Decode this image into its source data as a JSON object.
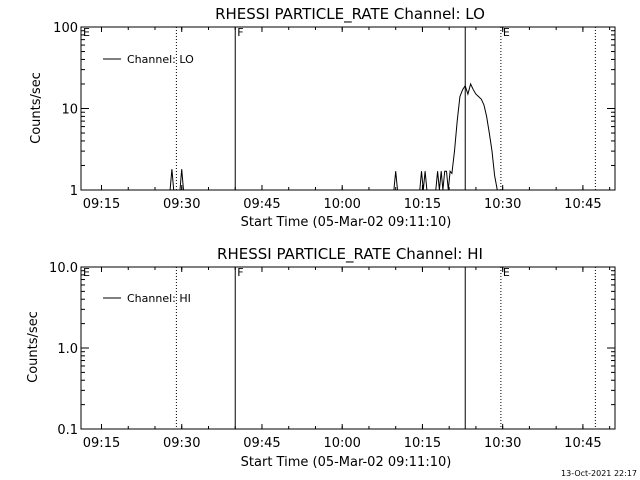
{
  "chart_data": [
    {
      "type": "line",
      "title": "RHESSI PARTICLE_RATE Channel: LO",
      "xlabel": "Start Time (05-Mar-02 09:11:10)",
      "ylabel": "Counts/sec",
      "y_scale": "log",
      "xlim": [
        "09:11:10",
        "10:51:00"
      ],
      "ylim": [
        1,
        100
      ],
      "x_ticks": [
        "09:15",
        "09:30",
        "09:45",
        "10:00",
        "10:15",
        "10:30",
        "10:45"
      ],
      "y_ticks": [
        "1",
        "10",
        "100"
      ],
      "legend": "top-left",
      "series": [
        {
          "name": "Channel: LO",
          "color": "#000000",
          "points": [
            [
              "09:11:10",
              1
            ],
            [
              "09:27:50",
              1
            ],
            [
              "09:28:10",
              1.8
            ],
            [
              "09:28:30",
              1
            ],
            [
              "09:29:40",
              1
            ],
            [
              "09:30:00",
              1.8
            ],
            [
              "09:30:20",
              1
            ],
            [
              "10:09:40",
              1
            ],
            [
              "10:10:00",
              1.7
            ],
            [
              "10:10:20",
              1
            ],
            [
              "10:14:30",
              1
            ],
            [
              "10:14:50",
              1.7
            ],
            [
              "10:15:10",
              1
            ],
            [
              "10:15:30",
              1.7
            ],
            [
              "10:15:50",
              1
            ],
            [
              "10:17:30",
              1
            ],
            [
              "10:17:50",
              1.7
            ],
            [
              "10:18:10",
              1
            ],
            [
              "10:18:30",
              1.7
            ],
            [
              "10:18:50",
              1
            ],
            [
              "10:19:10",
              1.7
            ],
            [
              "10:19:30",
              1.7
            ],
            [
              "10:19:50",
              1
            ],
            [
              "10:20:10",
              1.7
            ],
            [
              "10:20:30",
              1.6
            ],
            [
              "10:21:00",
              3
            ],
            [
              "10:21:30",
              7
            ],
            [
              "10:22:00",
              14
            ],
            [
              "10:22:30",
              17
            ],
            [
              "10:23:00",
              19
            ],
            [
              "10:23:30",
              15
            ],
            [
              "10:24:00",
              20
            ],
            [
              "10:24:30",
              17
            ],
            [
              "10:25:00",
              15
            ],
            [
              "10:25:30",
              14
            ],
            [
              "10:26:00",
              13
            ],
            [
              "10:26:30",
              11
            ],
            [
              "10:27:00",
              8
            ],
            [
              "10:27:30",
              5
            ],
            [
              "10:28:00",
              3
            ],
            [
              "10:28:30",
              1.5
            ],
            [
              "10:29:00",
              1
            ]
          ]
        }
      ],
      "markers": [
        {
          "label": "E",
          "time": "09:11:10",
          "style": "dotted"
        },
        {
          "label": "",
          "time": "09:29:00",
          "style": "dotted"
        },
        {
          "label": "F",
          "time": "09:40:00",
          "style": "solid"
        },
        {
          "label": "",
          "time": "10:23:00",
          "style": "solid"
        },
        {
          "label": "E",
          "time": "10:29:40",
          "style": "dotted"
        },
        {
          "label": "",
          "time": "10:47:20",
          "style": "dotted"
        }
      ]
    },
    {
      "type": "line",
      "title": "RHESSI PARTICLE_RATE Channel: HI",
      "xlabel": "Start Time (05-Mar-02 09:11:10)",
      "ylabel": "Counts/sec",
      "y_scale": "log",
      "xlim": [
        "09:11:10",
        "10:51:00"
      ],
      "ylim": [
        0.1,
        10
      ],
      "x_ticks": [
        "09:15",
        "09:30",
        "09:45",
        "10:00",
        "10:15",
        "10:30",
        "10:45"
      ],
      "y_ticks": [
        "0.1",
        "1.0",
        "10.0"
      ],
      "legend": "top-left",
      "series": [
        {
          "name": "Channel: HI",
          "color": "#000000",
          "points": []
        }
      ],
      "markers": [
        {
          "label": "E",
          "time": "09:11:10",
          "style": "dotted"
        },
        {
          "label": "",
          "time": "09:29:00",
          "style": "dotted"
        },
        {
          "label": "F",
          "time": "09:40:00",
          "style": "solid"
        },
        {
          "label": "",
          "time": "10:23:00",
          "style": "solid"
        },
        {
          "label": "E",
          "time": "10:29:40",
          "style": "dotted"
        },
        {
          "label": "",
          "time": "10:47:20",
          "style": "dotted"
        }
      ]
    }
  ],
  "footer": {
    "timestamp": "13-Oct-2021 22:17"
  }
}
